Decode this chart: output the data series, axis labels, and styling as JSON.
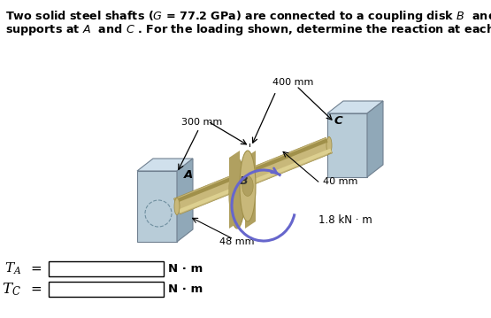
{
  "bg_color": "#ffffff",
  "shaft_color": "#c8b87a",
  "shaft_highlight": "#ddd090",
  "shaft_dark": "#a0904a",
  "disk_color": "#c8b87a",
  "disk_dark": "#a0904a",
  "disk_shadow": "#b0a060",
  "support_front": "#b8ccd8",
  "support_top": "#d0e0ec",
  "support_right": "#90a8b8",
  "support_edge": "#708090",
  "dim_color": "#000000",
  "arrow_color": "#6666cc",
  "label_300": "300 mm",
  "label_400": "400 mm",
  "label_48": "48 mm",
  "label_40": "40 mm",
  "label_torque": "1.8 kN · m",
  "label_A": "A",
  "label_B": "B",
  "label_C": "C",
  "units": "N · m",
  "figw": 5.55,
  "figh": 3.59,
  "dpi": 100
}
